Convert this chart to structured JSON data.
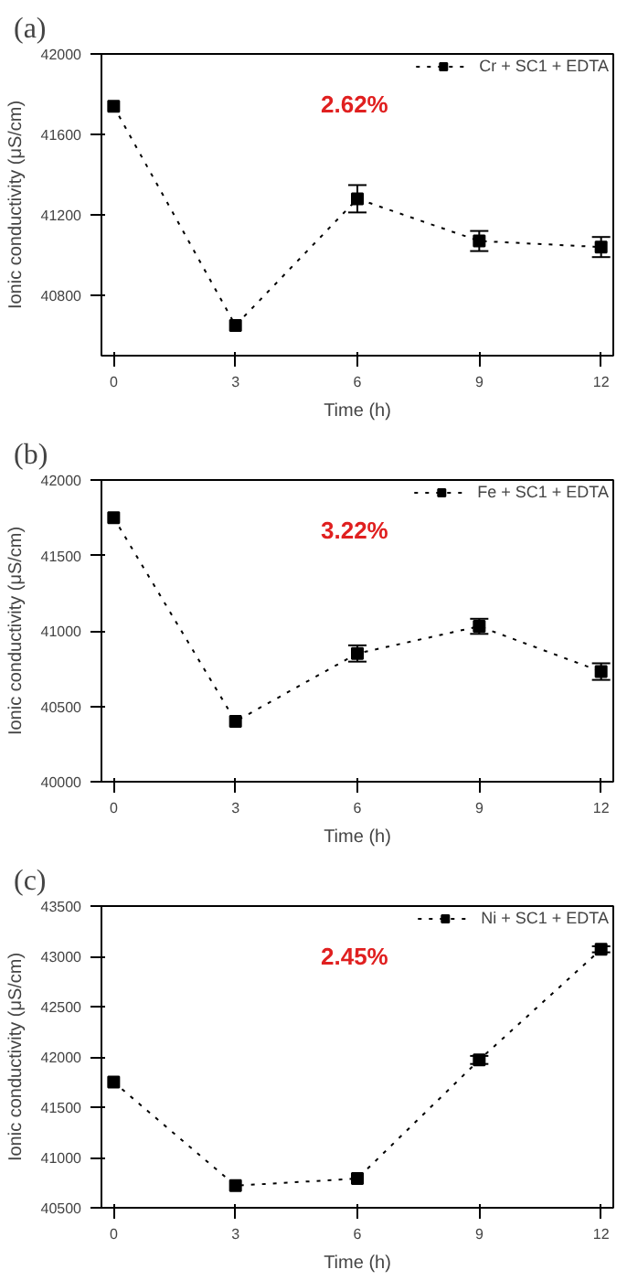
{
  "chart_data": [
    {
      "type": "line",
      "title": "(a)",
      "xlabel": "Time (h)",
      "ylabel": "Ionic conductivity (μS/cm)",
      "x": [
        0,
        3,
        6,
        9,
        12
      ],
      "xlim": [
        -0.3,
        12.3
      ],
      "xticks": [
        0,
        3,
        6,
        9,
        12
      ],
      "ylim": [
        40500,
        42000
      ],
      "yticks": [
        40800,
        41200,
        41600,
        42000
      ],
      "marker": "square",
      "line_style": "dotted",
      "legend": "top right",
      "grid": false,
      "annotations": [
        "2.62%"
      ],
      "series": [
        {
          "name": "Cr + SC1 + EDTA",
          "color": "#000000",
          "values": [
            41740,
            40650,
            41280,
            41070,
            41040
          ],
          "errors": [
            null,
            null,
            68,
            50,
            50
          ]
        }
      ]
    },
    {
      "type": "line",
      "title": "(b)",
      "xlabel": "Time (h)",
      "ylabel": "Ionic conductivity (μS/cm)",
      "x": [
        0,
        3,
        6,
        9,
        12
      ],
      "xlim": [
        -0.3,
        12.3
      ],
      "xticks": [
        0,
        3,
        6,
        9,
        12
      ],
      "ylim": [
        40000,
        42000
      ],
      "yticks": [
        40000,
        40500,
        41000,
        41500,
        42000
      ],
      "marker": "square",
      "line_style": "dotted",
      "legend": "top right",
      "grid": false,
      "annotations": [
        "3.22%"
      ],
      "series": [
        {
          "name": "Fe + SC1 + EDTA",
          "color": "#000000",
          "values": [
            41750,
            40400,
            40850,
            41030,
            40730
          ],
          "errors": [
            null,
            null,
            54,
            50,
            55
          ]
        }
      ]
    },
    {
      "type": "line",
      "title": "(c)",
      "xlabel": "Time (h)",
      "ylabel": "Ionic conductivity (μS/cm)",
      "x": [
        0,
        3,
        6,
        9,
        12
      ],
      "xlim": [
        -0.3,
        12.3
      ],
      "xticks": [
        0,
        3,
        6,
        9,
        12
      ],
      "ylim": [
        40500,
        43500
      ],
      "yticks": [
        40500,
        41000,
        41500,
        42000,
        42500,
        43000,
        43500
      ],
      "marker": "square",
      "line_style": "dotted",
      "legend": "top right",
      "grid": false,
      "annotations": [
        "2.45%"
      ],
      "series": [
        {
          "name": "Ni + SC1 + EDTA",
          "color": "#000000",
          "values": [
            41750,
            40720,
            40790,
            41970,
            43070
          ],
          "errors": [
            null,
            null,
            null,
            40,
            30
          ]
        }
      ]
    }
  ]
}
